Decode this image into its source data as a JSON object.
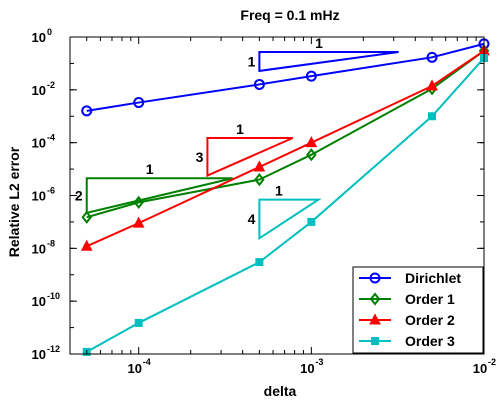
{
  "chart_data": {
    "type": "line",
    "title": "Freq = 0.1 mHz",
    "xlabel": "delta",
    "ylabel": "Relative L2 error",
    "xscale": "log",
    "yscale": "log",
    "xlim": [
      4e-05,
      0.01
    ],
    "ylim": [
      1e-12,
      1
    ],
    "grid": false,
    "legend_position": "bottom-right",
    "x_ticks": [
      {
        "value": 0.0001,
        "base": "10",
        "exp": "-4"
      },
      {
        "value": 0.001,
        "base": "10",
        "exp": "-3"
      },
      {
        "value": 0.01,
        "base": "10",
        "exp": "-2"
      }
    ],
    "y_ticks": [
      {
        "value": 1,
        "base": "10",
        "exp": "0"
      },
      {
        "value": 0.01,
        "base": "10",
        "exp": "-2"
      },
      {
        "value": 0.0001,
        "base": "10",
        "exp": "-4"
      },
      {
        "value": 1e-06,
        "base": "10",
        "exp": "-6"
      },
      {
        "value": 1e-08,
        "base": "10",
        "exp": "-8"
      },
      {
        "value": 1e-10,
        "base": "10",
        "exp": "-10"
      },
      {
        "value": 1e-12,
        "base": "10",
        "exp": "-12"
      }
    ],
    "series": [
      {
        "name": "Dirichlet",
        "color": "#0000ff",
        "marker": "circle",
        "x": [
          5e-05,
          0.0001,
          0.0005,
          0.001,
          0.005,
          0.01
        ],
        "y": [
          0.0016,
          0.0033,
          0.016,
          0.033,
          0.17,
          0.55
        ]
      },
      {
        "name": "Order 1",
        "color": "#008000",
        "marker": "diamond",
        "x": [
          5e-05,
          0.0001,
          0.0005,
          0.001,
          0.005,
          0.01
        ],
        "y": [
          1.5e-07,
          5.5e-07,
          4e-06,
          3.5e-05,
          0.011,
          0.3
        ]
      },
      {
        "name": "Order 2",
        "color": "#ff0000",
        "marker": "triangle",
        "x": [
          5e-05,
          0.0001,
          0.0005,
          0.001,
          0.005,
          0.01
        ],
        "y": [
          1.2e-08,
          9e-08,
          1.2e-05,
          0.0001,
          0.014,
          0.3
        ]
      },
      {
        "name": "Order 3",
        "color": "#00bfbf",
        "marker": "square",
        "x": [
          5e-05,
          0.0001,
          0.0005,
          0.001,
          0.005,
          0.01
        ],
        "y": [
          1.2e-12,
          1.5e-11,
          3e-09,
          1e-07,
          0.001,
          0.16
        ]
      }
    ],
    "slope_triangles": [
      {
        "color": "#0000ff",
        "vertices": [
          [
            0.0005,
            0.052
          ],
          [
            0.0005,
            0.27
          ],
          [
            0.0032,
            0.27
          ]
        ],
        "run_label": "1",
        "rise_label": "1"
      },
      {
        "color": "#ff0000",
        "vertices": [
          [
            0.00025,
            5.7e-06
          ],
          [
            0.00025,
            0.00015
          ],
          [
            0.00078,
            0.00015
          ]
        ],
        "run_label": "1",
        "rise_label": "3"
      },
      {
        "color": "#008000",
        "vertices": [
          [
            5e-05,
            2.2e-07
          ],
          [
            5e-05,
            4.5e-06
          ],
          [
            0.00035,
            4.5e-06
          ]
        ],
        "run_label": "1",
        "rise_label": "2"
      },
      {
        "color": "#00bfbf",
        "vertices": [
          [
            0.0005,
            2.4e-08
          ],
          [
            0.0005,
            7e-07
          ],
          [
            0.0011,
            7e-07
          ]
        ],
        "run_label": "1",
        "rise_label": "4"
      }
    ]
  }
}
